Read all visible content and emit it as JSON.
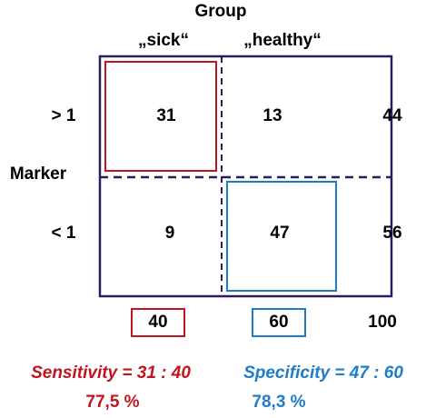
{
  "header": {
    "title": "Group",
    "columns": [
      "„sick“",
      "„healthy“"
    ]
  },
  "rows_label": "Marker",
  "rows": [
    {
      "label": "> 1",
      "cells": [
        31,
        13
      ],
      "total": 44
    },
    {
      "label": "< 1",
      "cells": [
        9,
        47
      ],
      "total": 56
    }
  ],
  "column_totals": [
    40,
    60
  ],
  "grand_total": 100,
  "sensitivity": {
    "formula": "Sensitivity = 31 : 40",
    "result": "77,5 %"
  },
  "specificity": {
    "formula": "Specificity = 47 : 60",
    "result": "78,3 %"
  }
}
